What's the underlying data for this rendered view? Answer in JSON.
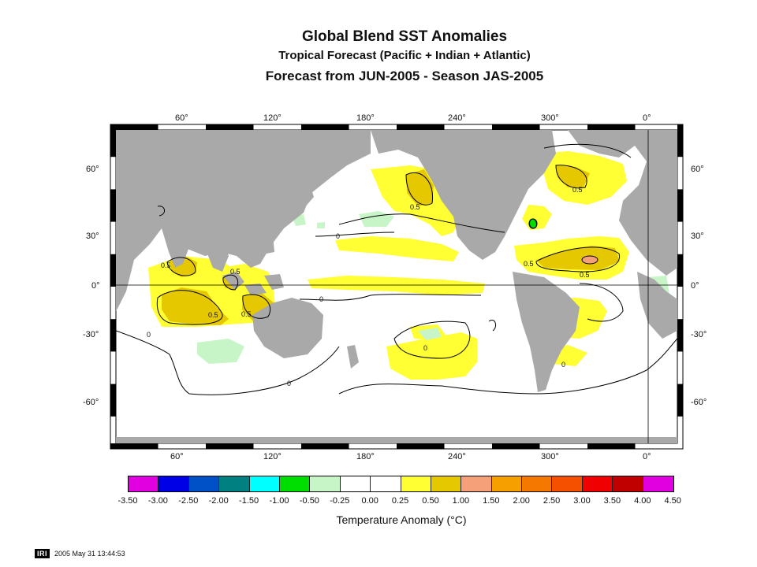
{
  "titles": {
    "main": "Global Blend SST Anomalies",
    "subtitle": "Tropical Forecast (Pacific + Indian + Atlantic)",
    "forecast": "Forecast from JUN-2005 - Season JAS-2005"
  },
  "axes": {
    "lon_ticks": [
      "60°",
      "120°",
      "180°",
      "240°",
      "300°",
      "0°"
    ],
    "lat_ticks": [
      "60°",
      "30°",
      "0°",
      "-30°",
      "-60°"
    ]
  },
  "contour_labels": [
    "0.5",
    "0.5",
    "0.5",
    "0.5",
    "0.5",
    "0.5",
    "0.5",
    "0.5",
    "0",
    "0",
    "0",
    "0",
    "0",
    "0"
  ],
  "colorbar": {
    "title": "Temperature Anomaly (°C)",
    "labels": [
      "-3.50",
      "-3.00",
      "-2.50",
      "-2.00",
      "-1.50",
      "-1.00",
      "-0.50",
      "-0.25",
      "0.00",
      "0.25",
      "0.50",
      "1.00",
      "1.50",
      "2.00",
      "2.50",
      "3.00",
      "3.50",
      "4.00",
      "4.50"
    ],
    "colors": [
      "#e000e0",
      "#0000e6",
      "#0050c8",
      "#008080",
      "#00ffff",
      "#00dd00",
      "#c8f5c8",
      "#ffffff",
      "#ffffff",
      "#ffff33",
      "#e6c800",
      "#f5a078",
      "#f5a000",
      "#f57800",
      "#f55000",
      "#f00000",
      "#c00000",
      "#e000e0"
    ]
  },
  "footer": {
    "logo": "IRI",
    "timestamp": "2005 May 31 13:44:53"
  }
}
